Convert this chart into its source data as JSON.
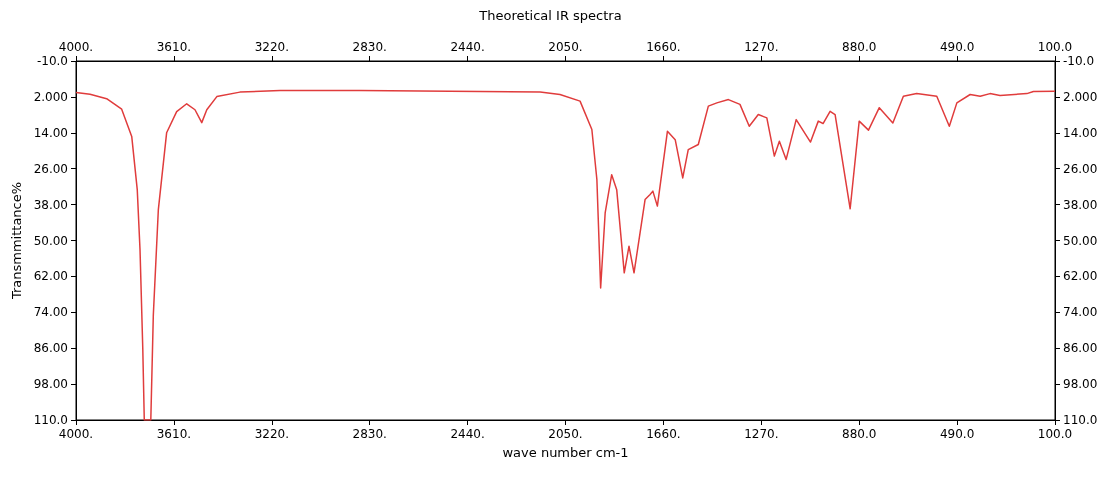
{
  "chart_data": {
    "type": "line",
    "title": "Theoretical IR spectra",
    "xlabel": "wave number cm-1",
    "ylabel": "Transmmittance%",
    "marker": "none",
    "xlim": [
      4000,
      100
    ],
    "xticks": [
      {
        "value": 4000,
        "label": "4000."
      },
      {
        "value": 3610,
        "label": "3610."
      },
      {
        "value": 3220,
        "label": "3220."
      },
      {
        "value": 2830,
        "label": "2830."
      },
      {
        "value": 2440,
        "label": "2440."
      },
      {
        "value": 2050,
        "label": "2050."
      },
      {
        "value": 1660,
        "label": "1660."
      },
      {
        "value": 1270,
        "label": "1270."
      },
      {
        "value": 880,
        "label": "880.0"
      },
      {
        "value": 490,
        "label": "490.0"
      },
      {
        "value": 100,
        "label": "100.0"
      }
    ],
    "x2lim": [
      4000,
      100
    ],
    "x2ticks": [
      {
        "value": 4000,
        "label": "4000."
      },
      {
        "value": 3610,
        "label": "3610."
      },
      {
        "value": 3220,
        "label": "3220."
      },
      {
        "value": 2830,
        "label": "2830."
      },
      {
        "value": 2440,
        "label": "2440."
      },
      {
        "value": 2050,
        "label": "2050."
      },
      {
        "value": 1660,
        "label": "1660."
      },
      {
        "value": 1270,
        "label": "1270."
      },
      {
        "value": 880,
        "label": "880.0"
      },
      {
        "value": 490,
        "label": "490.0"
      },
      {
        "value": 100,
        "label": "100.0"
      }
    ],
    "ylim": [
      110,
      -10
    ],
    "yticks": [
      {
        "value": -10,
        "label": "-10.0"
      },
      {
        "value": 2,
        "label": "2.000"
      },
      {
        "value": 14,
        "label": "14.00"
      },
      {
        "value": 26,
        "label": "26.00"
      },
      {
        "value": 38,
        "label": "38.00"
      },
      {
        "value": 50,
        "label": "50.00"
      },
      {
        "value": 62,
        "label": "62.00"
      },
      {
        "value": 74,
        "label": "74.00"
      },
      {
        "value": 86,
        "label": "86.00"
      },
      {
        "value": 98,
        "label": "98.00"
      },
      {
        "value": 110,
        "label": "110.0"
      }
    ],
    "y2lim": [
      110,
      -10
    ],
    "y2ticks": [
      {
        "value": -10,
        "label": "-10.0"
      },
      {
        "value": 2,
        "label": "2.000"
      },
      {
        "value": 14,
        "label": "14.00"
      },
      {
        "value": 26,
        "label": "26.00"
      },
      {
        "value": 38,
        "label": "38.00"
      },
      {
        "value": 50,
        "label": "50.00"
      },
      {
        "value": 62,
        "label": "62.00"
      },
      {
        "value": 74,
        "label": "74.00"
      },
      {
        "value": 86,
        "label": "86.00"
      },
      {
        "value": 98,
        "label": "98.00"
      },
      {
        "value": 110,
        "label": "110.0"
      }
    ],
    "x": [
      4000,
      3944,
      3878,
      3818,
      3778,
      3756,
      3745,
      3734,
      3728,
      3702,
      3692,
      3672,
      3639,
      3599,
      3559,
      3526,
      3499,
      3479,
      3439,
      3347,
      3187,
      2869,
      2390,
      2151,
      2072,
      1992,
      1945,
      1925,
      1910,
      1892,
      1866,
      1846,
      1816,
      1797,
      1777,
      1733,
      1713,
      1702,
      1684,
      1644,
      1613,
      1583,
      1561,
      1521,
      1481,
      1447,
      1401,
      1355,
      1318,
      1282,
      1248,
      1218,
      1198,
      1171,
      1131,
      1074,
      1043,
      1024,
      996,
      976,
      916,
      880,
      843,
      800,
      746,
      704,
      651,
      571,
      521,
      491,
      438,
      398,
      359,
      319,
      212,
      186,
      100
    ],
    "series": [
      {
        "color": "#e03c3c",
        "values": [
          0.5,
          1.1,
          2.6,
          6.1,
          15.2,
          33,
          53,
          86,
          110,
          110,
          75,
          39.7,
          14,
          6.9,
          4.3,
          6.3,
          10.6,
          6.3,
          1.9,
          0.4,
          -0.1,
          -0.1,
          0.2,
          0.4,
          1.2,
          3.4,
          12.9,
          29.6,
          65.9,
          40.8,
          28,
          33,
          60.8,
          51.9,
          60.8,
          36.3,
          34.6,
          33.5,
          38.5,
          13.5,
          16.3,
          29.1,
          19.6,
          17.9,
          5.1,
          4,
          2.9,
          4.5,
          11.8,
          7.9,
          9,
          21.8,
          16.8,
          22.9,
          9.6,
          17.1,
          10.1,
          10.9,
          6.8,
          7.9,
          39.4,
          10.1,
          13.1,
          5.6,
          10.7,
          1.8,
          0.9,
          1.8,
          11.8,
          4,
          1.2,
          1.8,
          0.9,
          1.5,
          0.9,
          0.2,
          0.1
        ]
      }
    ]
  }
}
